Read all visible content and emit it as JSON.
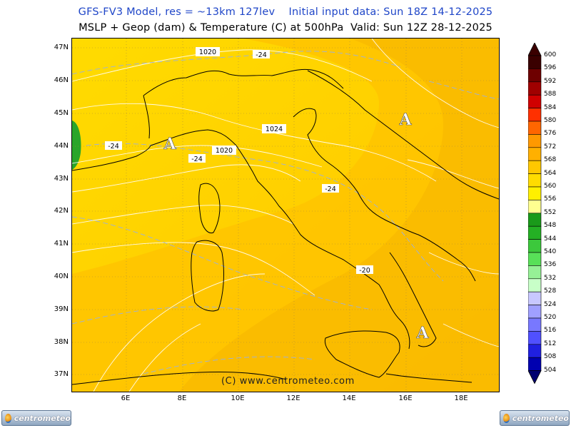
{
  "header": {
    "title_line1": "GFS-FV3 Model, res = ~13km 127lev    Initial input data: Sun 18Z 14-12-2025",
    "title_line2": "MSLP + Geop (dam) & Temperature (C) at 500hPa  Valid: Sun 12Z 28-12-2025"
  },
  "axes": {
    "lat_labels": [
      "47N",
      "46N",
      "45N",
      "44N",
      "43N",
      "42N",
      "41N",
      "40N",
      "39N",
      "38N",
      "37N"
    ],
    "lon_labels": [
      "6E",
      "8E",
      "10E",
      "12E",
      "14E",
      "16E",
      "18E"
    ]
  },
  "contour_labels": {
    "isobars": [
      "1020",
      "1024",
      "1020"
    ],
    "isotherms": [
      "-24",
      "-24",
      "-24",
      "-24",
      "-20"
    ],
    "high_markers": [
      "A",
      "A",
      "A"
    ]
  },
  "credit": "(C) www.centrometeo.com",
  "logos": {
    "left": "centrometeo",
    "right": "centrometeo"
  },
  "legend": {
    "labels": [
      "600",
      "596",
      "592",
      "588",
      "584",
      "580",
      "576",
      "572",
      "568",
      "564",
      "560",
      "556",
      "552",
      "548",
      "544",
      "540",
      "536",
      "532",
      "528",
      "524",
      "520",
      "516",
      "512",
      "508",
      "504"
    ],
    "colors": [
      "#3a0000",
      "#6e0000",
      "#a00000",
      "#d00000",
      "#ff3000",
      "#ff6600",
      "#ff9900",
      "#ffb000",
      "#ffc800",
      "#ffdc00",
      "#fff000",
      "#ffff90",
      "#1a9a1a",
      "#24b024",
      "#3cc83c",
      "#58e058",
      "#96f096",
      "#c8ffc8",
      "#c8c8ff",
      "#a0a0ff",
      "#7878ff",
      "#5050ff",
      "#2020e0",
      "#0000b0",
      "#000070"
    ]
  },
  "colors": {
    "map_base": "#ffc400",
    "map_light": "#ffd800",
    "map_dark": "#f5b400",
    "green_low": "#2aa52a"
  }
}
